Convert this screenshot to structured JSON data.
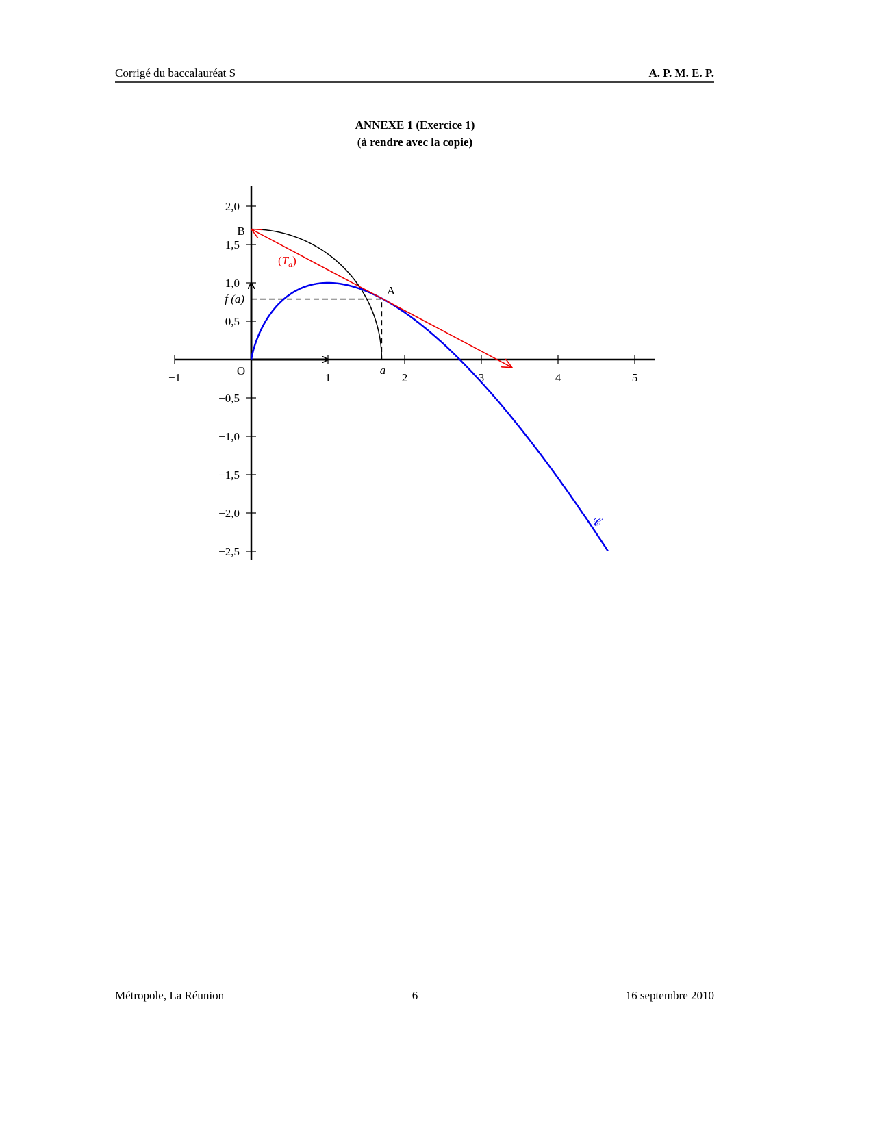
{
  "header": {
    "left": "Corrigé du baccalauréat S",
    "right": "A. P. M. E. P."
  },
  "title": [
    "ANNEXE 1 (Exercice 1)",
    "(à rendre avec la copie)"
  ],
  "figure": {
    "x_tick_labels": [
      "−1",
      "1",
      "2",
      "3",
      "4",
      "5"
    ],
    "y_tick_labels": [
      "2,0",
      "1,5",
      "1,0",
      "0,5",
      "−0,5",
      "−1,0",
      "−1,5",
      "−2,0",
      "−2,5"
    ],
    "point_B": "B",
    "point_A": "A",
    "origin": "O",
    "a_label": "a",
    "fa_label": "f (a)",
    "tangent_label": [
      "(",
      "T",
      "a",
      ")"
    ],
    "curve_label": "𝒞"
  },
  "footer": {
    "left": "Métropole, La Réunion",
    "center": "6",
    "right": "16 septembre 2010"
  }
}
